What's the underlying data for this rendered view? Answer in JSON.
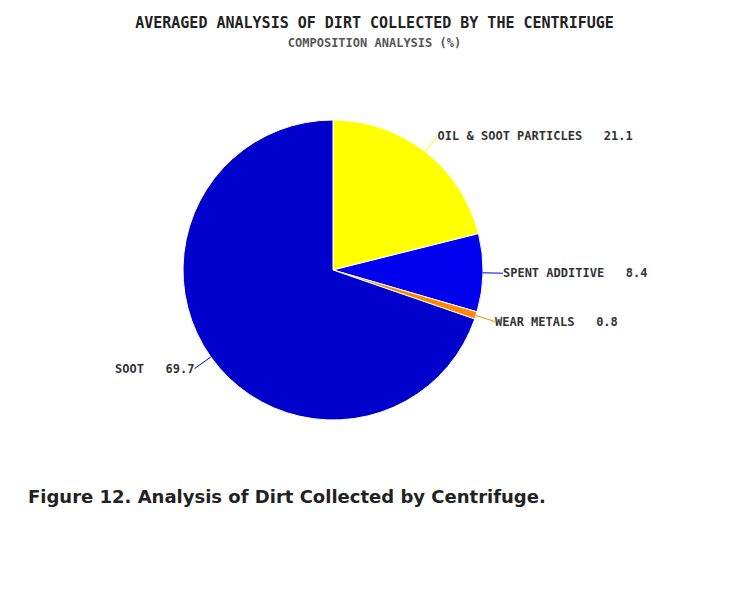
{
  "chart_data": {
    "type": "pie",
    "title": "AVERAGED ANALYSIS OF DIRT COLLECTED BY THE CENTRIFUGE",
    "subtitle": "COMPOSITION ANALYSIS (%)",
    "categories": [
      "OIL & SOOT PARTICLES",
      "SPENT ADDITIVE",
      "WEAR METALS",
      "SOOT"
    ],
    "values": [
      21.1,
      8.4,
      0.8,
      69.7
    ],
    "value_labels": [
      "OIL & SOOT PARTICLES   21.1",
      "SPENT ADDITIVE   8.4",
      "WEAR METALS   0.8",
      "SOOT   69.7"
    ],
    "colors": [
      "#FFFF00",
      "#0000EE",
      "#FF8800",
      "#0000CC"
    ],
    "data_labels": true,
    "annotations": [
      "Figure 12. Analysis of Dirt Collected by Centrifuge."
    ]
  }
}
